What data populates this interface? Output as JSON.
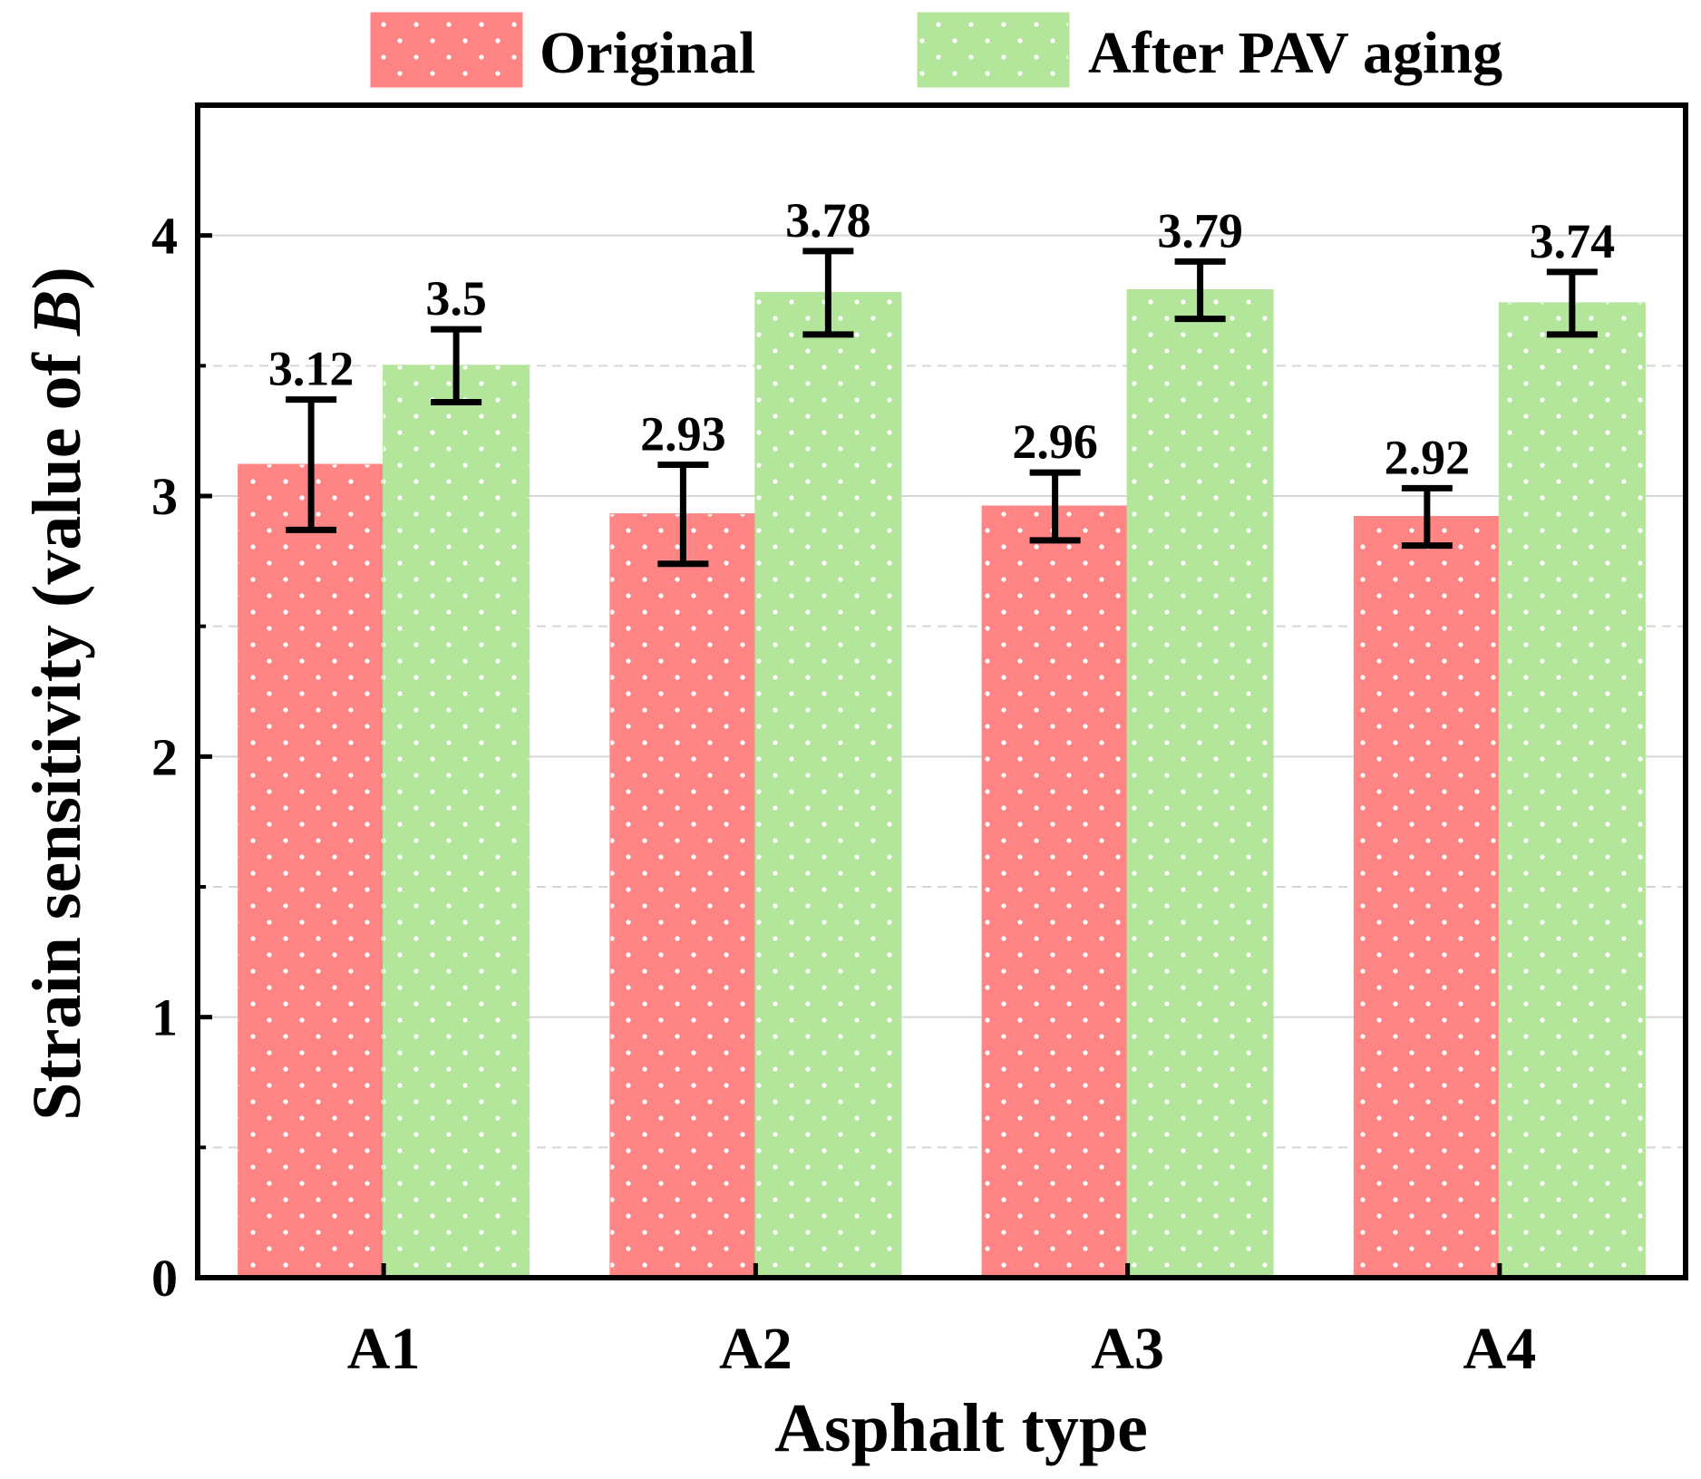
{
  "chart_data": {
    "type": "bar",
    "title": "",
    "xlabel": "Asphalt type",
    "ylabel_prefix": "Strain sensitivity (value of ",
    "ylabel_var": "B",
    "ylabel_suffix": ")",
    "categories": [
      "A1",
      "A2",
      "A3",
      "A4"
    ],
    "series": [
      {
        "name": "Original",
        "color": "#ff8585",
        "values": [
          3.12,
          2.93,
          2.96,
          2.92
        ],
        "value_labels": [
          "3.12",
          "2.93",
          "2.96",
          "2.92"
        ],
        "errors": [
          0.25,
          0.19,
          0.13,
          0.11
        ]
      },
      {
        "name": "After PAV aging",
        "color": "#b3e59a",
        "values": [
          3.5,
          3.78,
          3.79,
          3.74
        ],
        "value_labels": [
          "3.5",
          "3.78",
          "3.79",
          "3.74"
        ],
        "errors": [
          0.14,
          0.16,
          0.11,
          0.12
        ]
      }
    ],
    "ylim": [
      0,
      4.5
    ],
    "yticks": [
      0,
      1,
      2,
      3,
      4
    ],
    "ytick_labels": [
      "0",
      "1",
      "2",
      "3",
      "4"
    ],
    "minor_yticks": [
      0.5,
      1.5,
      2.5,
      3.5
    ],
    "grid": true,
    "legend": "top"
  }
}
